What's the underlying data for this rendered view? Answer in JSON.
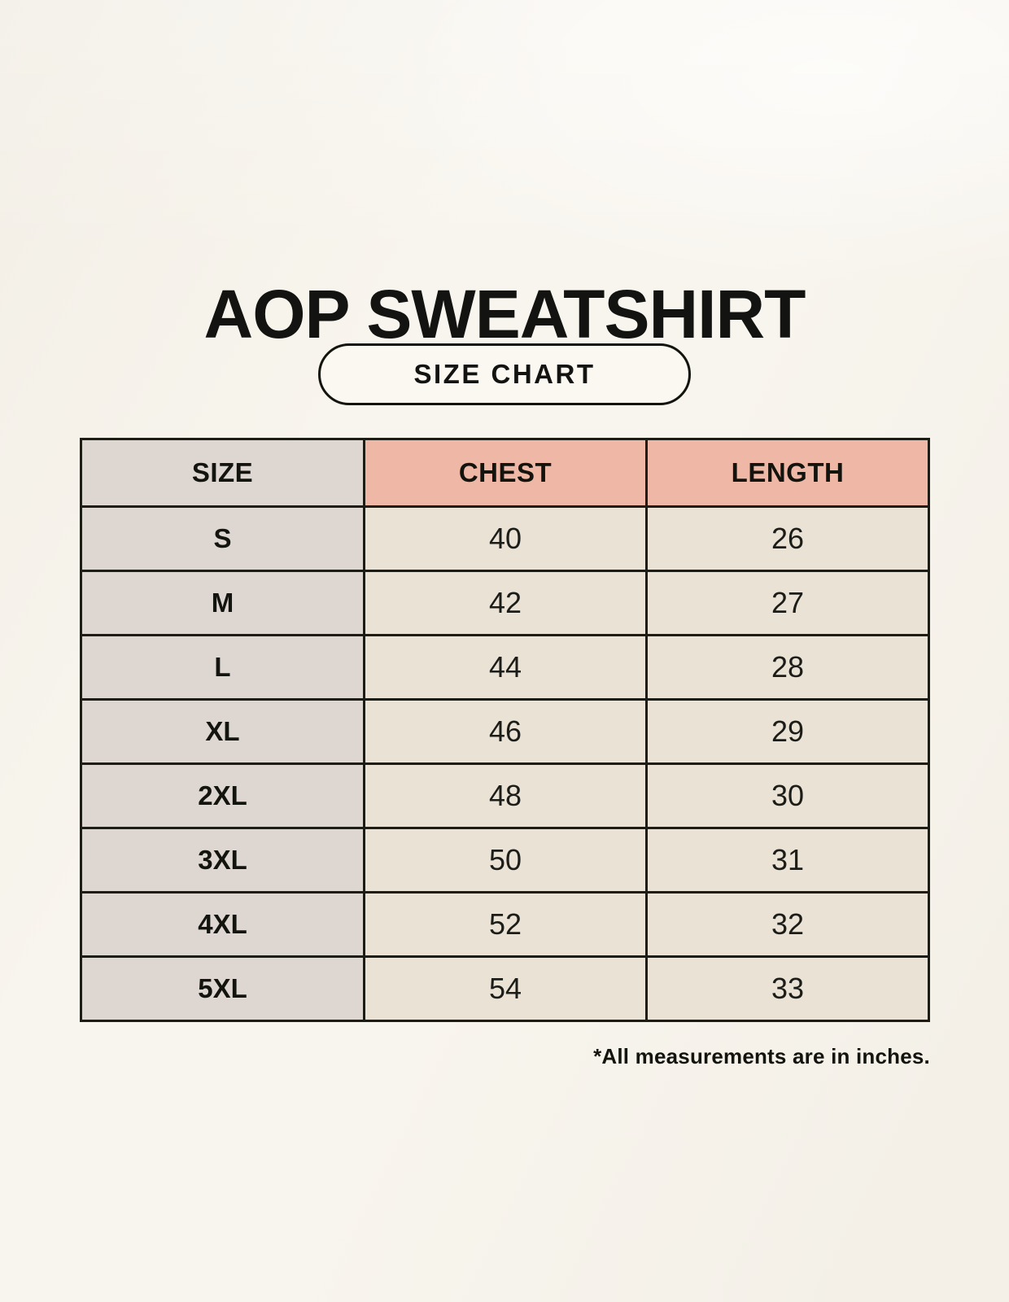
{
  "page": {
    "title": "AOP SWEATSHIRT",
    "size_chart_button_label": "SIZE CHART",
    "footnote": "*All measurements are in inches."
  },
  "table": {
    "columns": [
      "SIZE",
      "CHEST",
      "LENGTH"
    ],
    "rows": [
      {
        "size": "S",
        "chest": "40",
        "length": "26"
      },
      {
        "size": "M",
        "chest": "42",
        "length": "27"
      },
      {
        "size": "L",
        "chest": "44",
        "length": "28"
      },
      {
        "size": "XL",
        "chest": "46",
        "length": "29"
      },
      {
        "size": "2XL",
        "chest": "48",
        "length": "30"
      },
      {
        "size": "3XL",
        "chest": "50",
        "length": "31"
      },
      {
        "size": "4XL",
        "chest": "52",
        "length": "32"
      },
      {
        "size": "5XL",
        "chest": "54",
        "length": "33"
      }
    ]
  },
  "colors": {
    "page_background": "#f8f5ee",
    "size_column_bg": "#ddd6d1",
    "measure_header_bg": "#efb7a5",
    "data_cell_bg": "#e9e2d5",
    "table_border": "#1d1d16",
    "text": "#14140f"
  },
  "chart_data": {
    "type": "table",
    "title": "AOP SWEATSHIRT",
    "subtitle": "SIZE CHART",
    "columns": [
      "SIZE",
      "CHEST",
      "LENGTH"
    ],
    "rows": [
      [
        "S",
        40,
        26
      ],
      [
        "M",
        42,
        27
      ],
      [
        "L",
        44,
        28
      ],
      [
        "XL",
        46,
        29
      ],
      [
        "2XL",
        48,
        30
      ],
      [
        "3XL",
        50,
        31
      ],
      [
        "4XL",
        52,
        32
      ],
      [
        "5XL",
        54,
        33
      ]
    ],
    "units": "inches",
    "note": "*All measurements are in inches."
  }
}
